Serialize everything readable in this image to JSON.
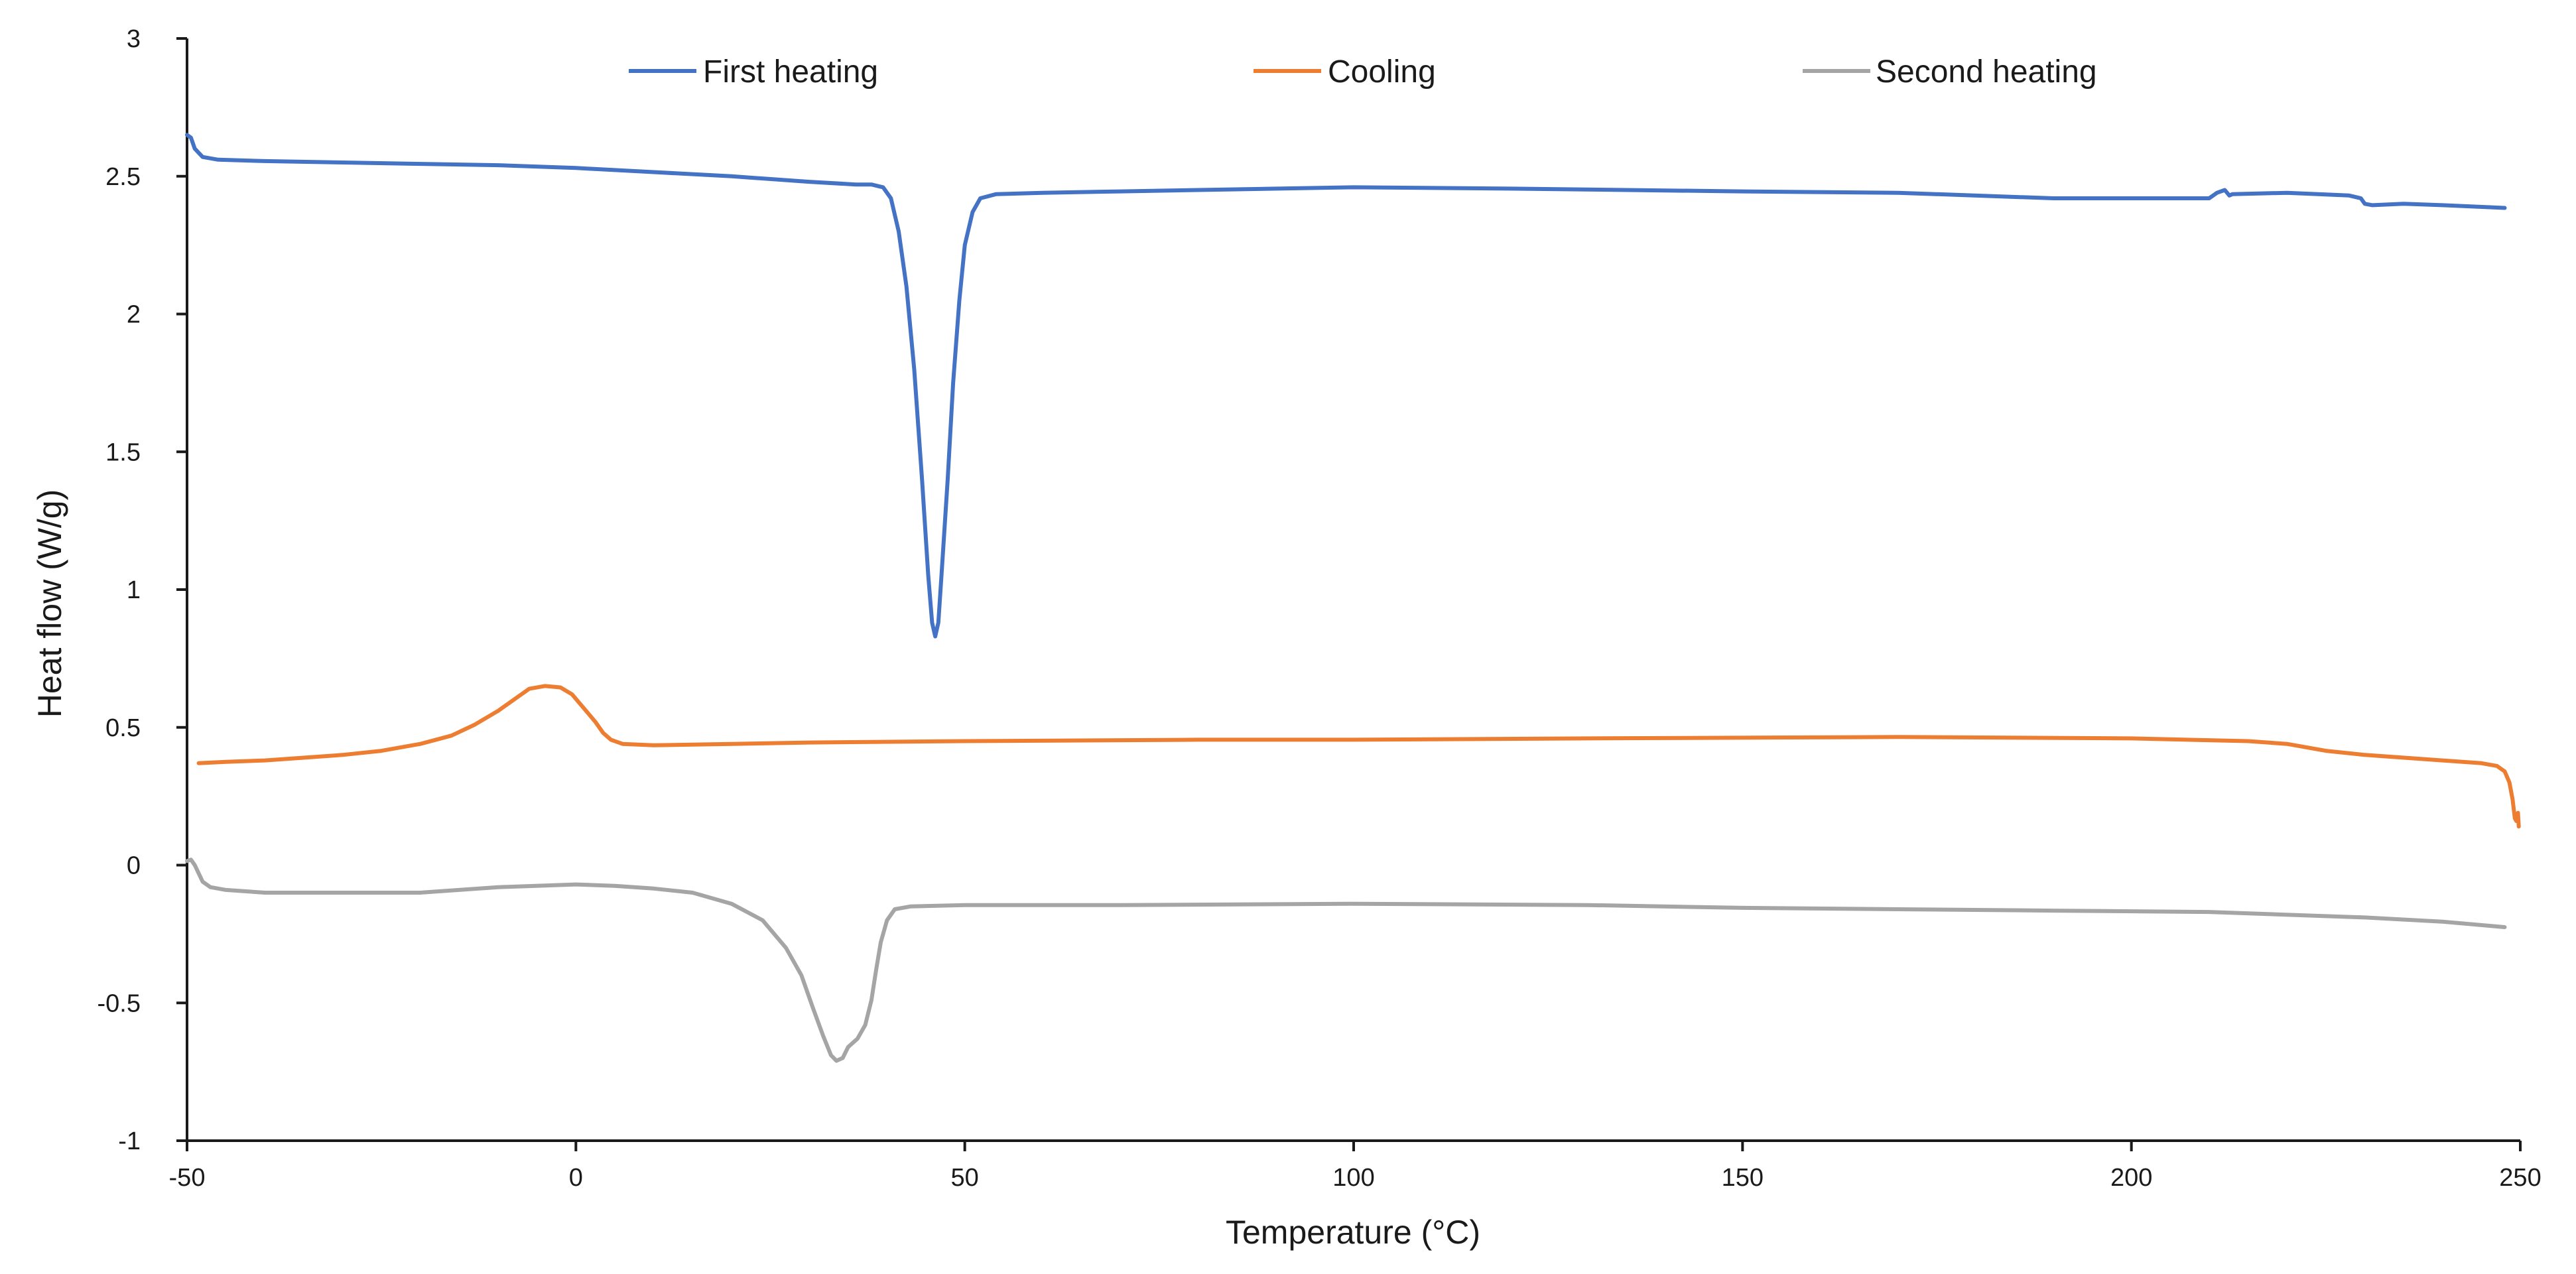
{
  "chart_data": {
    "type": "line",
    "title": "",
    "xlabel": "Temperature (°C)",
    "ylabel": "Heat flow (W/g)",
    "xlim": [
      -50,
      250
    ],
    "ylim": [
      -1,
      3
    ],
    "x_ticks": [
      -50,
      0,
      50,
      100,
      150,
      200,
      250
    ],
    "y_ticks": [
      -1,
      -0.5,
      0,
      0.5,
      1,
      1.5,
      2,
      2.5,
      3
    ],
    "x_tick_labels": [
      "-50",
      "0",
      "50",
      "100",
      "150",
      "200",
      "250"
    ],
    "y_tick_labels": [
      "-1",
      "-0.5",
      "0",
      "0.5",
      "1",
      "1.5",
      "2",
      "2.5",
      "3"
    ],
    "grid": false,
    "legend_position": "top",
    "series": [
      {
        "name": "First heating",
        "color": "#4472C4",
        "points": [
          [
            -50,
            2.65
          ],
          [
            -49.5,
            2.64
          ],
          [
            -49,
            2.6
          ],
          [
            -48,
            2.57
          ],
          [
            -46,
            2.56
          ],
          [
            -40,
            2.555
          ],
          [
            -30,
            2.55
          ],
          [
            -20,
            2.545
          ],
          [
            -10,
            2.54
          ],
          [
            0,
            2.53
          ],
          [
            10,
            2.515
          ],
          [
            20,
            2.5
          ],
          [
            30,
            2.48
          ],
          [
            36,
            2.47
          ],
          [
            38,
            2.47
          ],
          [
            39.5,
            2.46
          ],
          [
            40.5,
            2.42
          ],
          [
            41.5,
            2.3
          ],
          [
            42.5,
            2.1
          ],
          [
            43.5,
            1.8
          ],
          [
            44.5,
            1.4
          ],
          [
            45.3,
            1.05
          ],
          [
            45.8,
            0.88
          ],
          [
            46.2,
            0.83
          ],
          [
            46.6,
            0.88
          ],
          [
            47,
            1.05
          ],
          [
            47.8,
            1.4
          ],
          [
            48.5,
            1.75
          ],
          [
            49.3,
            2.05
          ],
          [
            50,
            2.25
          ],
          [
            51,
            2.37
          ],
          [
            52,
            2.42
          ],
          [
            54,
            2.435
          ],
          [
            60,
            2.44
          ],
          [
            70,
            2.445
          ],
          [
            80,
            2.45
          ],
          [
            100,
            2.46
          ],
          [
            120,
            2.455
          ],
          [
            150,
            2.445
          ],
          [
            170,
            2.44
          ],
          [
            190,
            2.42
          ],
          [
            200,
            2.42
          ],
          [
            210,
            2.42
          ],
          [
            211,
            2.44
          ],
          [
            212,
            2.45
          ],
          [
            212.6,
            2.43
          ],
          [
            213,
            2.435
          ],
          [
            220,
            2.44
          ],
          [
            228,
            2.43
          ],
          [
            229.5,
            2.42
          ],
          [
            230,
            2.4
          ],
          [
            231,
            2.395
          ],
          [
            235,
            2.4
          ],
          [
            240,
            2.395
          ],
          [
            248,
            2.385
          ]
        ]
      },
      {
        "name": "Cooling",
        "color": "#ED7D31",
        "points": [
          [
            -48.5,
            0.37
          ],
          [
            -45,
            0.375
          ],
          [
            -40,
            0.38
          ],
          [
            -35,
            0.39
          ],
          [
            -30,
            0.4
          ],
          [
            -25,
            0.415
          ],
          [
            -20,
            0.44
          ],
          [
            -16,
            0.47
          ],
          [
            -13,
            0.51
          ],
          [
            -10,
            0.56
          ],
          [
            -8,
            0.6
          ],
          [
            -6,
            0.64
          ],
          [
            -4,
            0.65
          ],
          [
            -2,
            0.645
          ],
          [
            -0.5,
            0.62
          ],
          [
            1,
            0.57
          ],
          [
            2.5,
            0.52
          ],
          [
            3.5,
            0.48
          ],
          [
            4.5,
            0.455
          ],
          [
            6,
            0.44
          ],
          [
            10,
            0.435
          ],
          [
            20,
            0.44
          ],
          [
            30,
            0.445
          ],
          [
            50,
            0.45
          ],
          [
            80,
            0.455
          ],
          [
            100,
            0.455
          ],
          [
            130,
            0.46
          ],
          [
            170,
            0.465
          ],
          [
            200,
            0.46
          ],
          [
            215,
            0.45
          ],
          [
            220,
            0.44
          ],
          [
            225,
            0.415
          ],
          [
            230,
            0.4
          ],
          [
            240,
            0.38
          ],
          [
            245,
            0.37
          ],
          [
            247,
            0.36
          ],
          [
            248,
            0.34
          ],
          [
            248.6,
            0.3
          ],
          [
            249,
            0.24
          ],
          [
            249.3,
            0.17
          ],
          [
            249.5,
            0.16
          ],
          [
            249.7,
            0.19
          ],
          [
            249.8,
            0.14
          ]
        ]
      },
      {
        "name": "Second heating",
        "color": "#A5A5A5",
        "points": [
          [
            -50,
            0.015
          ],
          [
            -49.5,
            0.02
          ],
          [
            -49,
            0.0
          ],
          [
            -48,
            -0.06
          ],
          [
            -47,
            -0.08
          ],
          [
            -45,
            -0.09
          ],
          [
            -40,
            -0.1
          ],
          [
            -30,
            -0.1
          ],
          [
            -20,
            -0.1
          ],
          [
            -10,
            -0.08
          ],
          [
            0,
            -0.07
          ],
          [
            5,
            -0.075
          ],
          [
            10,
            -0.085
          ],
          [
            15,
            -0.1
          ],
          [
            20,
            -0.14
          ],
          [
            24,
            -0.2
          ],
          [
            27,
            -0.3
          ],
          [
            29,
            -0.4
          ],
          [
            30.5,
            -0.52
          ],
          [
            31.8,
            -0.62
          ],
          [
            32.8,
            -0.69
          ],
          [
            33.5,
            -0.71
          ],
          [
            34.3,
            -0.7
          ],
          [
            35,
            -0.66
          ],
          [
            36.2,
            -0.63
          ],
          [
            37.2,
            -0.58
          ],
          [
            38,
            -0.49
          ],
          [
            38.6,
            -0.38
          ],
          [
            39.2,
            -0.28
          ],
          [
            40,
            -0.2
          ],
          [
            41,
            -0.16
          ],
          [
            43,
            -0.15
          ],
          [
            50,
            -0.145
          ],
          [
            70,
            -0.145
          ],
          [
            100,
            -0.14
          ],
          [
            130,
            -0.145
          ],
          [
            150,
            -0.155
          ],
          [
            170,
            -0.16
          ],
          [
            190,
            -0.165
          ],
          [
            210,
            -0.17
          ],
          [
            230,
            -0.19
          ],
          [
            240,
            -0.205
          ],
          [
            248,
            -0.225
          ]
        ]
      }
    ]
  }
}
